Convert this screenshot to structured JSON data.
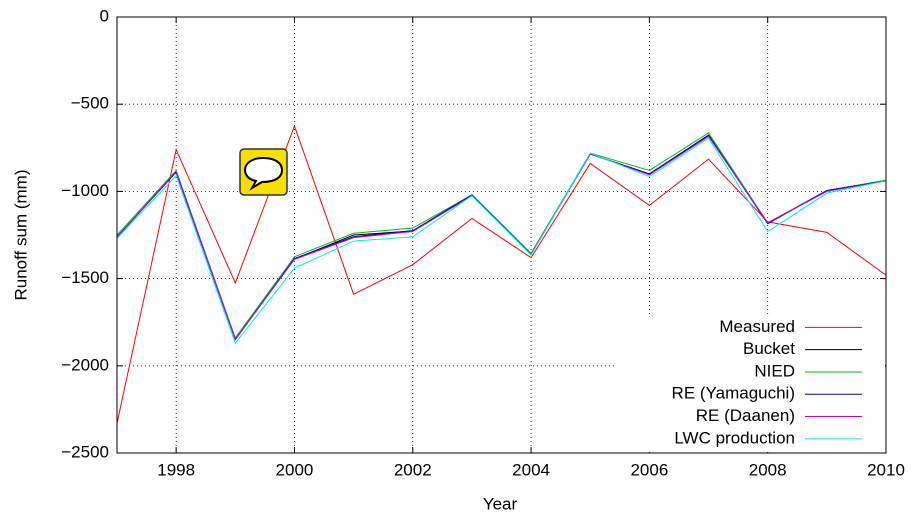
{
  "chart_data": {
    "type": "line",
    "x_label": "Year",
    "y_label": "Runoff sum (mm)",
    "x": [
      1997,
      1998,
      1999,
      2000,
      2001,
      2002,
      2003,
      2004,
      2005,
      2006,
      2007,
      2008,
      2009,
      2010
    ],
    "xlim": [
      1997,
      2010
    ],
    "xticks": [
      1998,
      2000,
      2002,
      2004,
      2006,
      2008,
      2010
    ],
    "ylim": [
      -2500,
      0
    ],
    "yticks": [
      {
        "value": -2500,
        "label": "−2500"
      },
      {
        "value": -2000,
        "label": "−2000"
      },
      {
        "value": -1500,
        "label": "−1500"
      },
      {
        "value": -1000,
        "label": "−1000"
      },
      {
        "value": -500,
        "label": "−500"
      },
      0
    ],
    "grid": true,
    "legend": "lower right",
    "series": [
      {
        "name": "Measured",
        "color": "#ff0000",
        "values": [
          -2330,
          -760,
          -1525,
          -625,
          -1590,
          -1420,
          -1155,
          -1380,
          -840,
          -1080,
          -815,
          -1175,
          -1235,
          -1480
        ]
      },
      {
        "name": "Bucket",
        "color": "#000000",
        "values": [
          -1262,
          -889,
          -1846,
          -1388,
          -1250,
          -1227,
          -1020,
          -1359,
          -786,
          -900,
          -677,
          -1181,
          -998,
          -940
        ]
      },
      {
        "name": "NIED",
        "color": "#00c000",
        "values": [
          -1250,
          -880,
          -1840,
          -1375,
          -1240,
          -1210,
          -1020,
          -1355,
          -780,
          -880,
          -665,
          -1180,
          -995,
          -935
        ]
      },
      {
        "name": "RE (Yamaguchi)",
        "color": "#0000a0",
        "values": [
          -1260,
          -890,
          -1850,
          -1385,
          -1260,
          -1225,
          -1020,
          -1360,
          -785,
          -900,
          -680,
          -1185,
          -995,
          -940
        ]
      },
      {
        "name": "RE (Daanen)",
        "color": "#c000ff",
        "values": [
          -1262,
          -885,
          -1848,
          -1390,
          -1265,
          -1230,
          -1025,
          -1360,
          -785,
          -905,
          -685,
          -1180,
          -1000,
          -940
        ]
      },
      {
        "name": "LWC production",
        "color": "#00eeee",
        "values": [
          -1270,
          -910,
          -1870,
          -1440,
          -1285,
          -1260,
          -1025,
          -1365,
          -780,
          -915,
          -695,
          -1230,
          -1010,
          -940
        ]
      }
    ]
  }
}
